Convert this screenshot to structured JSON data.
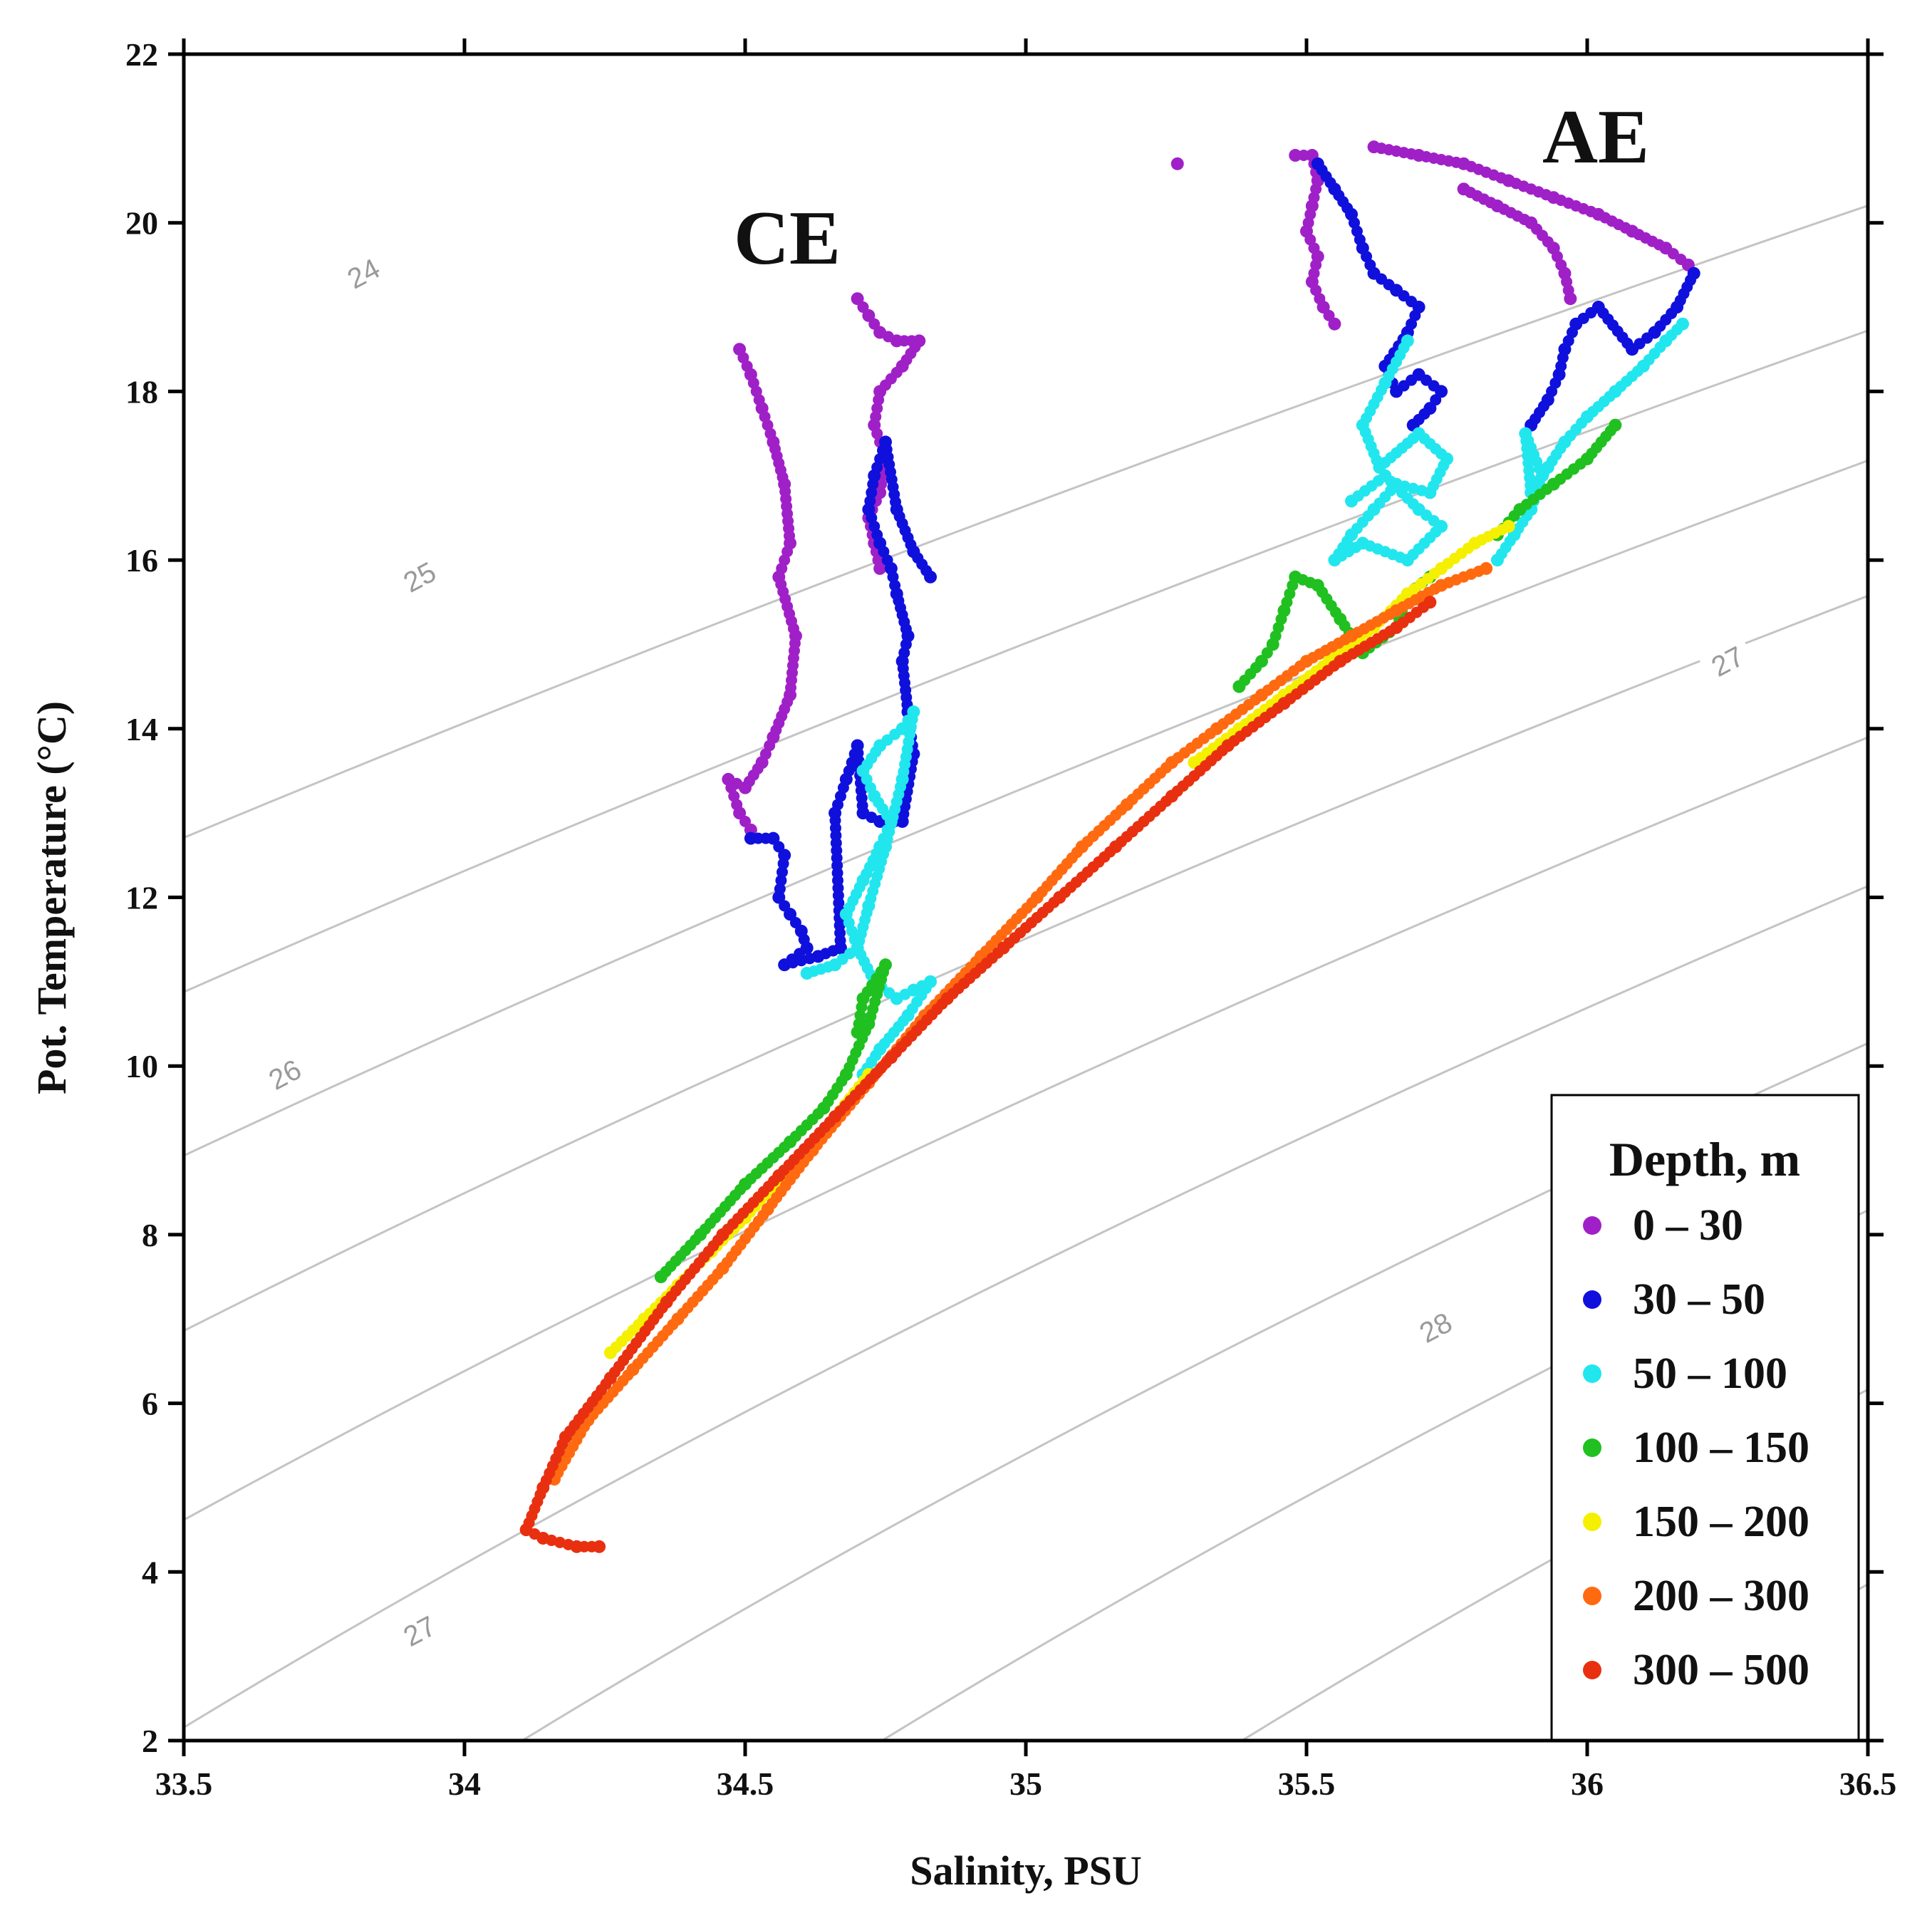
{
  "chart_data": {
    "type": "scatter",
    "title": "",
    "xlabel": "Salinity, PSU",
    "ylabel": "Pot. Temperature (°C)",
    "xlim": [
      33.5,
      36.5
    ],
    "ylim": [
      2,
      22
    ],
    "xticks": [
      33.5,
      34,
      34.5,
      35,
      35.5,
      36,
      36.5
    ],
    "xtick_labels": [
      "33.5",
      "34",
      "34.5",
      "35",
      "35.5",
      "36",
      "36.5"
    ],
    "yticks": [
      2,
      4,
      6,
      8,
      10,
      12,
      14,
      16,
      18,
      20,
      22
    ],
    "ytick_labels": [
      "2",
      "4",
      "6",
      "8",
      "10",
      "12",
      "14",
      "16",
      "18",
      "20",
      "22"
    ],
    "grid": false,
    "legend": {
      "title": "Depth, m",
      "placement": "bottom-right"
    },
    "annotations": [
      {
        "text": "CE",
        "x": 34.7,
        "y": 19.6
      },
      {
        "text": "AE",
        "x": 35.97,
        "y": 20.9
      }
    ],
    "isopycnals": [
      {
        "sigma": 23.5,
        "label": ""
      },
      {
        "sigma": 24.0,
        "label": "24",
        "label_at": [
          33.82,
          19.4
        ]
      },
      {
        "sigma": 24.5,
        "label": ""
      },
      {
        "sigma": 25.0,
        "label": "25",
        "label_at": [
          33.92,
          15.8
        ]
      },
      {
        "sigma": 25.5,
        "label": ""
      },
      {
        "sigma": 26.0,
        "label": "26",
        "label_at": [
          33.68,
          9.9
        ]
      },
      {
        "sigma": 26.5,
        "label": ""
      },
      {
        "sigma": 27.0,
        "label": "27",
        "label_at": [
          33.92,
          3.3
        ]
      },
      {
        "sigma": 27.5,
        "label": ""
      },
      {
        "sigma": 28.0,
        "label": "28",
        "label_at": [
          35.73,
          6.9
        ]
      },
      {
        "sigma": 28.5,
        "label": ""
      },
      {
        "sigma": 27.0,
        "label": "27",
        "label_at": [
          36.25,
          14.8
        ],
        "note": "second label on 27 contour"
      }
    ],
    "isopycnal_model": "sigma = 26.8 + 0.78*(S - 35) - 0.2083*(T - 4) - 0.00417*(T - 4)^2",
    "series": [
      {
        "name": "0 – 30",
        "color": "#a020c8",
        "profiles": [
          {
            "salinity": [
              34.49,
              34.51,
              34.53,
              34.55,
              34.57,
              34.58,
              34.56,
              34.59,
              34.58,
              34.55,
              34.53,
              34.5,
              34.47,
              34.49,
              34.51
            ],
            "temperature": [
              18.5,
              18.2,
              17.8,
              17.4,
              16.9,
              16.2,
              15.8,
              15.1,
              14.4,
              13.9,
              13.6,
              13.3,
              13.4,
              13.0,
              12.8
            ]
          },
          {
            "salinity": [
              34.7,
              34.72,
              34.74,
              34.77,
              34.81,
              34.78,
              34.74,
              34.73,
              34.75,
              34.74,
              34.72,
              34.73,
              34.74
            ],
            "temperature": [
              19.1,
              18.9,
              18.7,
              18.6,
              18.6,
              18.3,
              18.0,
              17.6,
              17.2,
              16.8,
              16.5,
              16.2,
              15.9
            ]
          },
          {
            "salinity": [
              35.27
            ],
            "temperature": [
              20.7
            ]
          },
          {
            "salinity": [
              35.48,
              35.51,
              35.52,
              35.51,
              35.5,
              35.52,
              35.51,
              35.53,
              35.55
            ],
            "temperature": [
              20.8,
              20.8,
              20.5,
              20.2,
              19.9,
              19.6,
              19.3,
              19.0,
              18.8
            ]
          },
          {
            "salinity": [
              35.62,
              35.7,
              35.78,
              35.86,
              35.94,
              36.02,
              36.08,
              36.14,
              36.18
            ],
            "temperature": [
              20.9,
              20.8,
              20.7,
              20.5,
              20.3,
              20.1,
              19.9,
              19.7,
              19.5
            ]
          },
          {
            "salinity": [
              35.78,
              35.84,
              35.9,
              35.94,
              35.96,
              35.97
            ],
            "temperature": [
              20.4,
              20.2,
              20.0,
              19.7,
              19.4,
              19.1
            ]
          }
        ]
      },
      {
        "name": "30 – 50",
        "color": "#1010dd",
        "profiles": [
          {
            "salinity": [
              34.51,
              34.55,
              34.57,
              34.56,
              34.58,
              34.6,
              34.61,
              34.57,
              34.63,
              34.67,
              34.66,
              34.68,
              34.7,
              34.71,
              34.74,
              34.78,
              34.8,
              34.79,
              34.78,
              34.79,
              34.77,
              34.76,
              34.74,
              34.72,
              34.73,
              34.75,
              34.77,
              34.8,
              34.83
            ],
            "temperature": [
              12.7,
              12.7,
              12.5,
              12.0,
              11.8,
              11.6,
              11.4,
              11.2,
              11.3,
              11.4,
              13.0,
              13.4,
              13.8,
              13.0,
              12.9,
              12.9,
              13.7,
              14.2,
              14.8,
              15.1,
              15.6,
              15.9,
              16.2,
              16.6,
              17.0,
              17.4,
              16.6,
              16.1,
              15.8
            ]
          },
          {
            "salinity": [
              35.52,
              35.55,
              35.58,
              35.6,
              35.62,
              35.66,
              35.7,
              35.68,
              35.64,
              35.66,
              35.7,
              35.74,
              35.72,
              35.69
            ],
            "temperature": [
              20.7,
              20.4,
              20.1,
              19.7,
              19.4,
              19.2,
              19.0,
              18.7,
              18.3,
              18.0,
              18.2,
              18.0,
              17.8,
              17.6
            ]
          },
          {
            "salinity": [
              36.19,
              36.16,
              36.12,
              36.08,
              36.02,
              35.98,
              35.96,
              35.95,
              35.93,
              35.9
            ],
            "temperature": [
              19.4,
              19.0,
              18.7,
              18.5,
              19.0,
              18.8,
              18.5,
              18.2,
              17.9,
              17.6
            ]
          }
        ]
      },
      {
        "name": "50 – 100",
        "color": "#22e6ee",
        "profiles": [
          {
            "salinity": [
              34.61,
              34.66,
              34.7,
              34.68,
              34.71,
              34.74,
              34.76,
              34.73,
              34.71,
              34.74,
              34.78,
              34.8,
              34.78,
              34.75,
              34.72,
              34.7,
              34.73,
              34.77,
              34.8,
              34.83,
              34.79,
              34.74,
              34.71
            ],
            "temperature": [
              11.1,
              11.2,
              11.4,
              11.8,
              12.2,
              12.6,
              12.9,
              13.2,
              13.5,
              13.8,
              14.0,
              14.2,
              13.4,
              12.6,
              11.9,
              11.4,
              11.0,
              10.8,
              10.9,
              11.0,
              10.6,
              10.2,
              9.9
            ]
          },
          {
            "salinity": [
              35.68,
              35.64,
              35.6,
              35.63,
              35.7,
              35.75,
              35.72,
              35.66,
              35.62,
              35.58,
              35.55,
              35.6,
              35.68,
              35.74,
              35.7,
              35.64,
              35.58
            ],
            "temperature": [
              18.6,
              18.1,
              17.6,
              17.1,
              17.5,
              17.2,
              16.8,
              16.9,
              16.6,
              16.3,
              16.0,
              16.2,
              16.0,
              16.4,
              16.6,
              17.0,
              16.7
            ]
          },
          {
            "salinity": [
              36.17,
              36.14,
              36.1,
              36.05,
              36.0,
              35.96,
              35.93,
              35.9,
              35.89,
              35.92,
              35.9,
              35.87,
              35.84
            ],
            "temperature": [
              18.8,
              18.6,
              18.3,
              18.0,
              17.7,
              17.4,
              17.1,
              16.8,
              17.5,
              17.0,
              16.6,
              16.3,
              16.0
            ]
          }
        ]
      },
      {
        "name": "100 – 150",
        "color": "#20c020",
        "profiles": [
          {
            "salinity": [
              34.35,
              34.42,
              34.5,
              34.58,
              34.64,
              34.68,
              34.72,
              34.75,
              34.71,
              34.7
            ],
            "temperature": [
              7.5,
              8.0,
              8.6,
              9.1,
              9.5,
              9.9,
              10.5,
              11.2,
              10.8,
              10.4
            ]
          },
          {
            "salinity": [
              35.38,
              35.42,
              35.44,
              35.46,
              35.48,
              35.52,
              35.56,
              35.6,
              35.66,
              35.68,
              35.72
            ],
            "temperature": [
              14.5,
              14.8,
              15.0,
              15.4,
              15.8,
              15.7,
              15.3,
              14.9,
              15.2,
              15.6,
              15.8
            ]
          },
          {
            "salinity": [
              35.84,
              35.88,
              35.94,
              36.0,
              36.05
            ],
            "temperature": [
              16.3,
              16.6,
              16.9,
              17.2,
              17.6
            ]
          }
        ]
      },
      {
        "name": "150 – 200",
        "color": "#f5f000",
        "profiles": [
          {
            "salinity": [
              34.26,
              34.32,
              34.38,
              34.44,
              34.5,
              34.58,
              34.66,
              34.72
            ],
            "temperature": [
              6.6,
              7.0,
              7.4,
              7.8,
              8.2,
              8.8,
              9.4,
              9.9
            ]
          },
          {
            "salinity": [
              35.3,
              35.38,
              35.46,
              35.54,
              35.62,
              35.68,
              35.74,
              35.8,
              35.86
            ],
            "temperature": [
              13.6,
              14.0,
              14.4,
              14.8,
              15.2,
              15.6,
              15.9,
              16.2,
              16.4
            ]
          }
        ]
      },
      {
        "name": "200 – 300",
        "color": "#ff6a10",
        "profiles": [
          {
            "salinity": [
              34.16,
              34.22,
              34.3,
              34.38,
              34.46,
              34.54,
              34.62,
              34.72,
              34.82,
              34.92,
              35.02,
              35.1,
              35.18,
              35.26,
              35.34,
              35.42,
              35.5,
              35.58,
              35.66,
              35.74,
              35.82
            ],
            "temperature": [
              5.1,
              5.8,
              6.4,
              7.0,
              7.6,
              8.3,
              9.0,
              9.8,
              10.6,
              11.3,
              12.0,
              12.6,
              13.1,
              13.6,
              14.0,
              14.4,
              14.8,
              15.1,
              15.4,
              15.7,
              15.9
            ]
          }
        ]
      },
      {
        "name": "300 – 500",
        "color": "#e83010",
        "profiles": [
          {
            "salinity": [
              34.24,
              34.2,
              34.14,
              34.11,
              34.14,
              34.18,
              34.26,
              34.36,
              34.46,
              34.56,
              34.66,
              34.76,
              34.86,
              34.96,
              35.06,
              35.16,
              35.26,
              35.36,
              35.46,
              35.56,
              35.66,
              35.72
            ],
            "temperature": [
              4.3,
              4.3,
              4.4,
              4.5,
              5.0,
              5.6,
              6.3,
              7.2,
              8.0,
              8.7,
              9.4,
              10.1,
              10.8,
              11.4,
              12.0,
              12.6,
              13.2,
              13.8,
              14.3,
              14.8,
              15.2,
              15.5
            ]
          }
        ]
      }
    ]
  }
}
